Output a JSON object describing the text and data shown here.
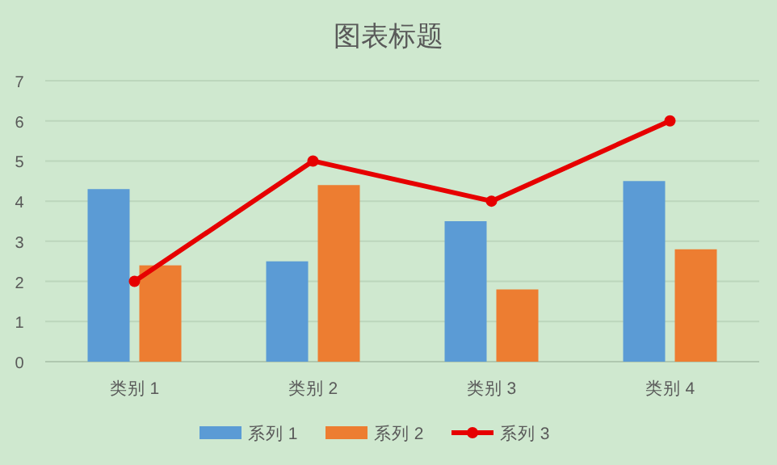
{
  "chart_data": {
    "type": "bar",
    "title": "图表标题",
    "categories": [
      "类别 1",
      "类别 2",
      "类别 3",
      "类别 4"
    ],
    "series": [
      {
        "name": "系列 1",
        "color": "#5b9bd5",
        "values": [
          4.3,
          2.5,
          3.5,
          4.5
        ]
      },
      {
        "name": "系列 2",
        "color": "#ed7d31",
        "values": [
          2.4,
          4.4,
          1.8,
          2.8
        ]
      },
      {
        "name": "系列 3",
        "color": "#e60000",
        "type": "line",
        "values": [
          2,
          5,
          4,
          6
        ]
      }
    ],
    "ylim": [
      0,
      7
    ],
    "yticks": [
      0,
      1,
      2,
      3,
      4,
      5,
      6,
      7
    ],
    "grid": "y",
    "legend": "bottom",
    "marker": "circle"
  }
}
